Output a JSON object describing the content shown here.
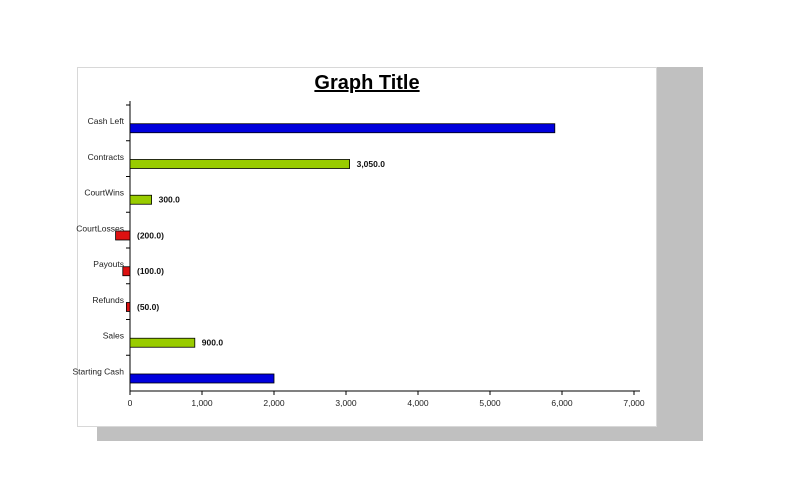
{
  "chart_data": {
    "type": "bar",
    "orientation": "horizontal",
    "title": "Graph Title",
    "categories": [
      "Starting Cash",
      "Sales",
      "Refunds",
      "Payouts",
      "CourtLosses",
      "CourtWins",
      "Contracts",
      "Cash Left"
    ],
    "values": [
      2000,
      900,
      -50,
      -100,
      -200,
      300,
      3050,
      5900
    ],
    "labels": [
      "",
      "900.0",
      "(50.0)",
      "(100.0)",
      "(200.0)",
      "300.0",
      "3,050.0",
      ""
    ],
    "colors": [
      "#0000dd",
      "#99cc00",
      "#dd1111",
      "#dd1111",
      "#dd1111",
      "#99cc00",
      "#99cc00",
      "#0000dd"
    ],
    "xlim": [
      0,
      7000
    ],
    "xticks": [
      "0",
      "1,000",
      "2,000",
      "3,000",
      "4,000",
      "5,000",
      "6,000",
      "7,000"
    ],
    "xlabel": "",
    "ylabel": "",
    "grid": false,
    "legend": "none"
  }
}
